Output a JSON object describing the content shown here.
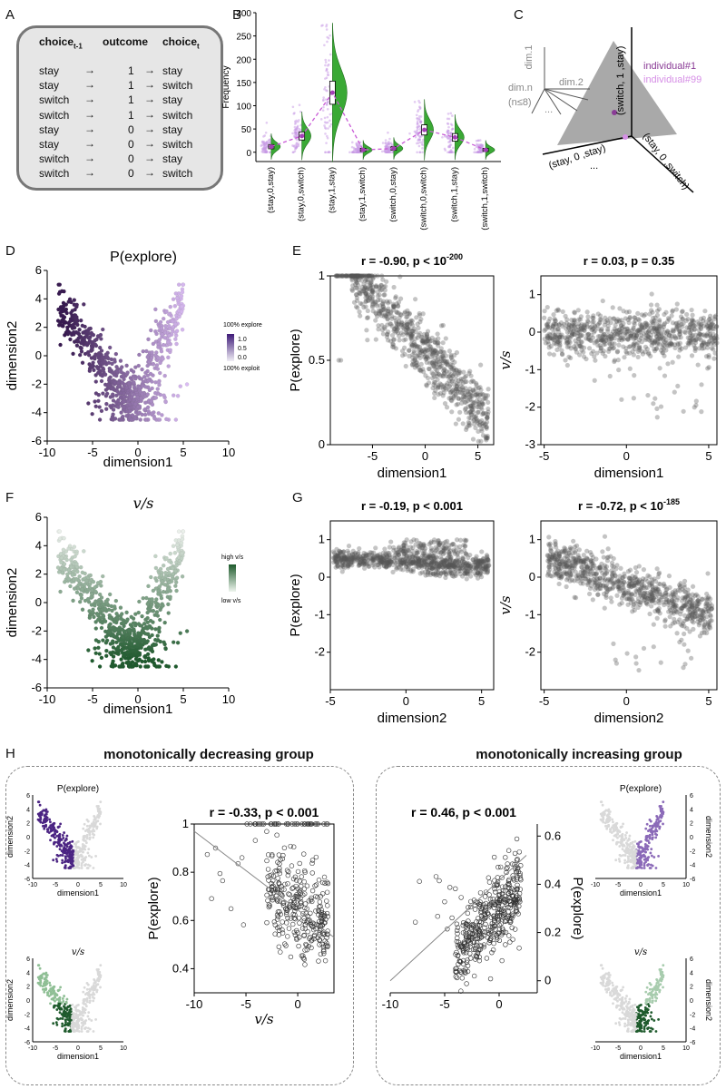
{
  "panel_labels": {
    "a": "A",
    "b": "B",
    "c": "C",
    "d": "D",
    "e": "E",
    "f": "F",
    "g": "G",
    "h": "H"
  },
  "panelA": {
    "headers": [
      "choice",
      "outcome",
      "choice"
    ],
    "header_subs": [
      "t-1",
      "t"
    ],
    "rows": [
      {
        "c1": "stay",
        "o": "1",
        "c2": "stay"
      },
      {
        "c1": "stay",
        "o": "1",
        "c2": "switch"
      },
      {
        "c1": "switch",
        "o": "1",
        "c2": "stay"
      },
      {
        "c1": "switch",
        "o": "1",
        "c2": "switch"
      },
      {
        "c1": "stay",
        "o": "0",
        "c2": "stay"
      },
      {
        "c1": "stay",
        "o": "0",
        "c2": "switch"
      },
      {
        "c1": "switch",
        "o": "0",
        "c2": "stay"
      },
      {
        "c1": "switch",
        "o": "0",
        "c2": "switch"
      }
    ]
  },
  "panelC": {
    "axes": [
      "dim.1",
      "dim.2",
      "dim.n",
      "(n≤8)",
      "..."
    ],
    "legend": [
      "individual#1",
      "individual#99"
    ],
    "plane_labels": [
      "(switch, 1 ,stay)",
      "(stay, 0 ,stay)",
      "(stay, 0 ,switch)",
      "..."
    ],
    "colors": {
      "ind1": "#8a3c96",
      "ind99": "#d68fe6"
    }
  },
  "panelD": {
    "title": "P(explore)",
    "colorbar_top": "100% explore",
    "colorbar_bottom": "100% exploit",
    "colorbar_ticks": [
      "1.0",
      "0.5",
      "0.0"
    ]
  },
  "panelF": {
    "title": "v/s",
    "colorbar_top": "high v/s",
    "colorbar_bottom": "low v/s"
  },
  "panelH": {
    "left_title": "monotonically decreasing group",
    "right_title": "monotonically increasing group",
    "mini_title_p": "P(explore)",
    "mini_title_v": "v/s",
    "mini_xlabel": "dimension1",
    "mini_ylabel": "dimension2"
  },
  "chart_data": [
    {
      "id": "B",
      "type": "scatter",
      "subtype": "raincloud",
      "ylabel": "Frequency",
      "ylim": [
        -20,
        300
      ],
      "yticks": [
        0,
        50,
        100,
        150,
        200,
        250,
        300
      ],
      "categories": [
        "(stay,0,stay)",
        "(stay,0,switch)",
        "(stay,1,stay)",
        "(stay,1,switch)",
        "(switch,0,stay)",
        "(switch,0,switch)",
        "(switch,1,stay)",
        "(switch,1,switch)"
      ],
      "medians": [
        12,
        35,
        128,
        5,
        8,
        48,
        32,
        5
      ]
    },
    {
      "id": "D",
      "type": "scatter",
      "title": "P(explore)",
      "xlabel": "dimension1",
      "ylabel": "dimension2",
      "xlim": [
        -10,
        10
      ],
      "ylim": [
        -6,
        6
      ],
      "xticks": [
        -10,
        -5,
        0,
        5,
        10
      ],
      "yticks": [
        -6,
        -4,
        -2,
        0,
        2,
        4,
        6
      ],
      "color_by": "P(explore)"
    },
    {
      "id": "E1",
      "type": "scatter",
      "title": "r = -0.90, p < 10",
      "title_exp": "-200",
      "xlabel": "dimension1",
      "ylabel": "P(explore)",
      "xlim": [
        -9,
        6.5
      ],
      "ylim": [
        0,
        1
      ],
      "xticks": [
        -5,
        0,
        5
      ],
      "yticks": [
        0,
        0.5,
        1
      ],
      "r": -0.9
    },
    {
      "id": "E2",
      "type": "scatter",
      "title": "r = 0.03, p = 0.35",
      "xlabel": "dimension1",
      "ylabel": "v/s",
      "xlim": [
        -5.2,
        5.5
      ],
      "ylim": [
        -3,
        1.5
      ],
      "xticks": [
        -5,
        0,
        5
      ],
      "yticks": [
        -3,
        -2,
        -1,
        0,
        1
      ],
      "r": 0.03
    },
    {
      "id": "F",
      "type": "scatter",
      "title": "v/s",
      "xlabel": "dimension1",
      "ylabel": "dimension2",
      "xlim": [
        -10,
        10
      ],
      "ylim": [
        -6,
        6
      ],
      "xticks": [
        -10,
        -5,
        0,
        5,
        10
      ],
      "yticks": [
        -6,
        -4,
        -2,
        0,
        2,
        4,
        6
      ],
      "color_by": "v/s"
    },
    {
      "id": "G1",
      "type": "scatter",
      "title": "r = -0.19, p < 0.001",
      "xlabel": "dimension2",
      "ylabel": "P(explore)",
      "xlim": [
        -5,
        5.8
      ],
      "ylim": [
        -3,
        1.5
      ],
      "xticks": [
        -5,
        0,
        5
      ],
      "yticks": [
        -2,
        -1,
        0,
        1
      ],
      "r": -0.19
    },
    {
      "id": "G2",
      "type": "scatter",
      "title": "r = -0.72, p < 10",
      "title_exp": "-185",
      "xlabel": "dimension2",
      "ylabel": "v/s",
      "xlim": [
        -5.2,
        5.5
      ],
      "ylim": [
        -3,
        1.5
      ],
      "xticks": [
        -5,
        0,
        5
      ],
      "yticks": [
        -2,
        -1,
        0,
        1
      ],
      "r": -0.72
    },
    {
      "id": "H1",
      "type": "scatter",
      "title": "r = -0.33, p < 0.001",
      "xlabel": "v/s",
      "ylabel": "P(explore)",
      "xlim": [
        -10,
        3.5
      ],
      "ylim": [
        0.3,
        1
      ],
      "xticks": [
        -10,
        -5,
        0
      ],
      "yticks": [
        0.4,
        0.6,
        0.8,
        1
      ],
      "r": -0.33
    },
    {
      "id": "H2",
      "type": "scatter",
      "title": "r = 0.46, p < 0.001",
      "xlabel": "",
      "ylabel": "P(explore)",
      "xlim": [
        -10,
        3.5
      ],
      "ylim": [
        -0.05,
        0.65
      ],
      "xticks": [
        -10,
        -5,
        0
      ],
      "yticks": [
        0,
        0.2,
        0.4,
        0.6
      ],
      "r": 0.46
    }
  ]
}
